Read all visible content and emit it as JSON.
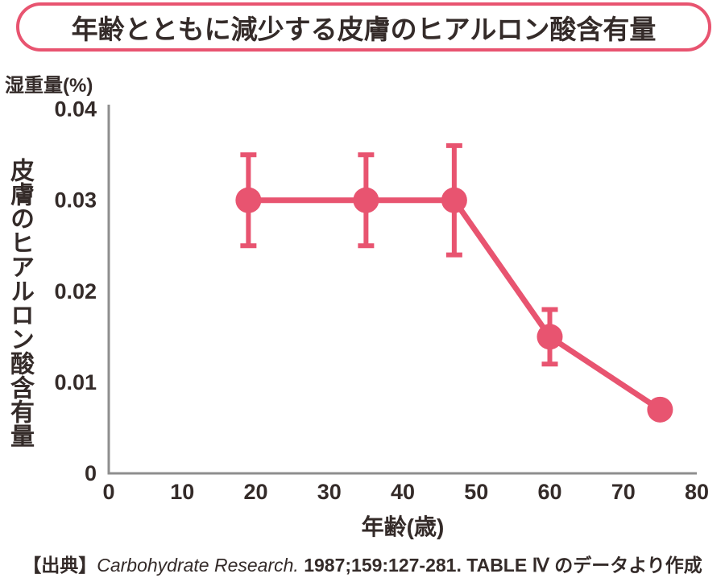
{
  "title": "年齢とともに減少する皮膚のヒアルロン酸含有量",
  "colors": {
    "accent": "#e85470",
    "text": "#342b29",
    "axis": "#8e8e8e",
    "plot_bg": "#ffffff"
  },
  "chart_data": {
    "type": "line",
    "title": "年齢とともに減少する皮膚のヒアルロン酸含有量",
    "x_title": "年齢(歳)",
    "y_title": "皮膚のヒアルロン酸含有量",
    "y_unit": "湿重量(%)",
    "xlim": [
      0,
      80
    ],
    "ylim": [
      0,
      0.04
    ],
    "x_ticks": [
      0,
      10,
      20,
      30,
      40,
      50,
      60,
      70,
      80
    ],
    "y_ticks": [
      0,
      0.01,
      0.02,
      0.03,
      0.04
    ],
    "y_tick_labels": [
      "0",
      "0.01",
      "0.02",
      "0.03",
      "0.04"
    ],
    "grid": false,
    "legend": false,
    "series": [
      {
        "name": "皮膚のヒアルロン酸含有量",
        "color": "#e85470",
        "marker_radius": 16,
        "line_width": 7,
        "points": [
          {
            "age": 19,
            "value": 0.03,
            "err_high": 0.035,
            "err_low": 0.025
          },
          {
            "age": 35,
            "value": 0.03,
            "err_high": 0.035,
            "err_low": 0.025
          },
          {
            "age": 47,
            "value": 0.03,
            "err_high": 0.036,
            "err_low": 0.024
          },
          {
            "age": 60,
            "value": 0.015,
            "err_high": 0.018,
            "err_low": 0.012
          },
          {
            "age": 75,
            "value": 0.007
          }
        ]
      }
    ]
  },
  "citation": {
    "prefix": "【出典】",
    "journal": "Carbohydrate Research.",
    "reference": " 1987;159:127-281. TABLE Ⅳ ",
    "suffix": "のデータより作成"
  }
}
